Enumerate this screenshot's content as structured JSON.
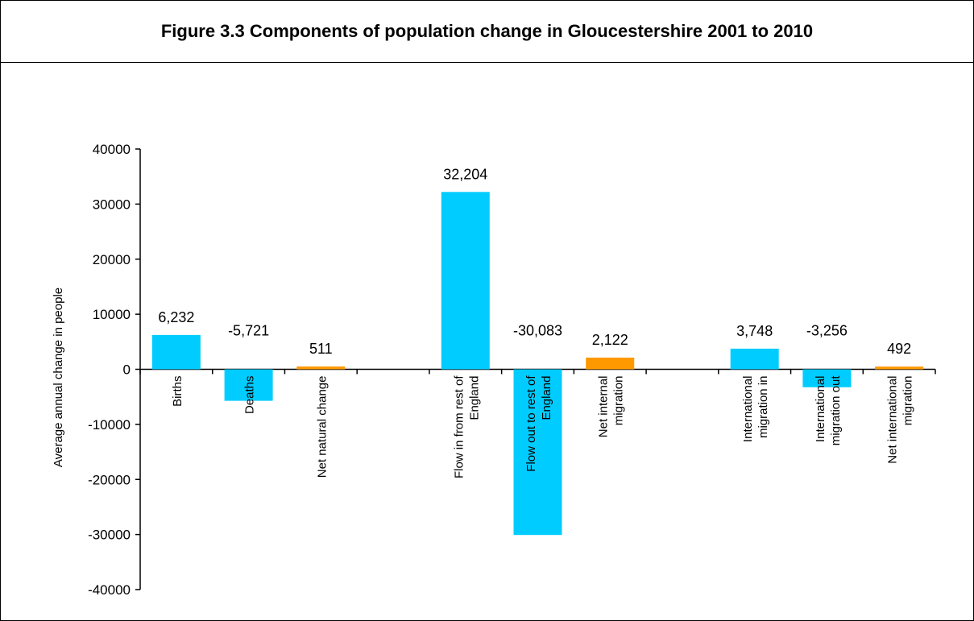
{
  "chart_data": {
    "type": "bar",
    "title": "Figure 3.3 Components of population change in Gloucestershire 2001 to 2010",
    "ylabel": "Average annual change in people",
    "xlabel": "",
    "ylim": [
      -40000,
      40000
    ],
    "yticks": [
      40000,
      30000,
      20000,
      10000,
      0,
      -10000,
      -20000,
      -30000,
      -40000
    ],
    "categories": [
      "Births",
      "Deaths",
      "Net natural change",
      "",
      "Flow in from rest of England",
      "Flow out to rest of England",
      "Net internal migration",
      "",
      "International migration in",
      "International migration out",
      "Net international migration"
    ],
    "category_lines": [
      [
        "Births"
      ],
      [
        "Deaths"
      ],
      [
        "Net natural change"
      ],
      [],
      [
        "Flow in from rest of",
        "England"
      ],
      [
        "Flow out to rest of",
        "England"
      ],
      [
        "Net internal",
        "migration"
      ],
      [],
      [
        "International",
        "migration in"
      ],
      [
        "International",
        "migration out"
      ],
      [
        "Net international",
        "migration"
      ]
    ],
    "values": [
      6232,
      -5721,
      511,
      null,
      32204,
      -30083,
      2122,
      null,
      3748,
      -3256,
      492
    ],
    "data_labels": [
      "6,232",
      "-5,721",
      "511",
      "",
      "32,204",
      "-30,083",
      "2,122",
      "",
      "3,748",
      "-3,256",
      "492"
    ],
    "bar_colors": [
      "#00CCFF",
      "#00CCFF",
      "#FF9900",
      null,
      "#00CCFF",
      "#00CCFF",
      "#FF9900",
      null,
      "#00CCFF",
      "#00CCFF",
      "#FF9900"
    ],
    "grid": false,
    "legend": "none"
  }
}
